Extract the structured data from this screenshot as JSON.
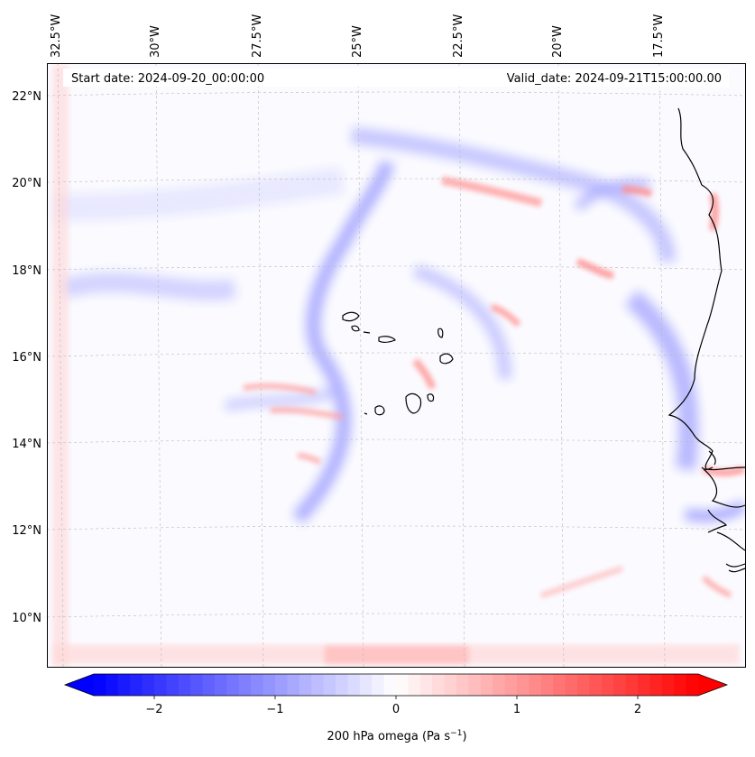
{
  "map": {
    "start_label": "Start date: 2024-09-20_00:00:00",
    "valid_label": "Valid_date: 2024-09-21T15:00:00.00",
    "lon_ticks": [
      "32.5°W",
      "30°W",
      "27.5°W",
      "25°W",
      "22.5°W",
      "20°W",
      "17.5°W"
    ],
    "lat_ticks": [
      "22°N",
      "20°N",
      "18°N",
      "16°N",
      "14°N",
      "12°N",
      "10°N"
    ],
    "gridlines": true
  },
  "colorbar": {
    "label": "200 hPa omega (Pa s",
    "label_sup": "−1",
    "label_close": ")",
    "tick_labels": [
      "−2",
      "−1",
      "0",
      "1",
      "2"
    ],
    "tick_values": [
      -2,
      -1,
      0,
      1,
      2
    ],
    "range": [
      -2.5,
      2.5
    ],
    "extend": "both",
    "colormap": "bwr",
    "colors": {
      "negative": "#0000ff",
      "zero": "#ffffff",
      "positive": "#ff0000"
    }
  }
}
